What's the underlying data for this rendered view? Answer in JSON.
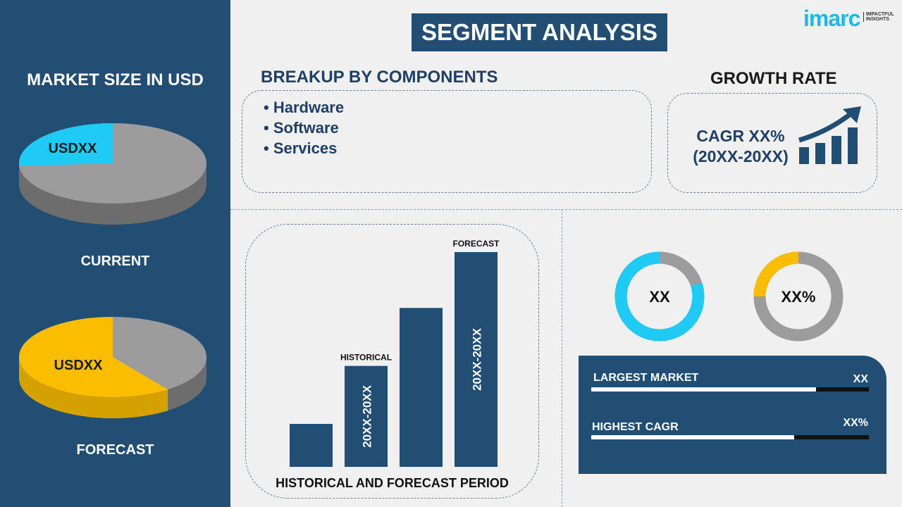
{
  "logo": {
    "brand": "imarc",
    "tagline": "IMPACTFUL INSIGHTS"
  },
  "title": "SEGMENT ANALYSIS",
  "left": {
    "heading": "MARKET SIZE IN USD",
    "current": {
      "label": "CURRENT",
      "value": "USDXX",
      "share": 0.26,
      "color": "#1fcbf5"
    },
    "forecast": {
      "label": "FORECAST",
      "value": "USDXX",
      "share": 0.6,
      "color": "#fbbd00"
    },
    "other_color": "#9c9c9c"
  },
  "breakup": {
    "heading": "BREAKUP BY COMPONENTS",
    "items": [
      "Hardware",
      "Software",
      "Services"
    ]
  },
  "growth": {
    "heading": "GROWTH RATE",
    "line1": "CAGR XX%",
    "line2": "(20XX-20XX)",
    "icon": "growth-chart-arrow-icon"
  },
  "chart_data": {
    "type": "bar",
    "title": "HISTORICAL AND FORECAST PERIOD",
    "values": [
      0.2,
      0.47,
      0.74,
      1.0
    ],
    "bar_labels": [
      "",
      "20XX-20XX",
      "",
      "20XX-20XX"
    ],
    "annotations": [
      "",
      "HISTORICAL",
      "",
      "FORECAST"
    ],
    "color": "#234e74"
  },
  "donuts": [
    {
      "label": "XX",
      "share": 0.8,
      "color": "#1fcbf5"
    },
    {
      "label": "XX%",
      "share": 0.25,
      "color": "#fbbd00"
    }
  ],
  "kpis": [
    {
      "label": "LARGEST MARKET",
      "value": "XX",
      "fill": 0.81
    },
    {
      "label": "HIGHEST CAGR",
      "value": "XX%",
      "fill": 0.73
    }
  ]
}
